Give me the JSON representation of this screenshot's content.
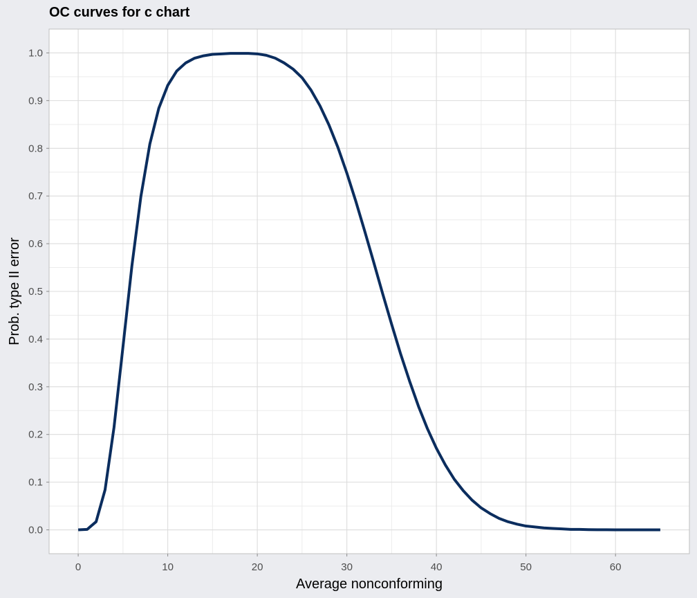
{
  "chart_data": {
    "type": "line",
    "title": "OC curves for c chart",
    "xlabel": "Average nonconforming",
    "ylabel": "Prob. type II error",
    "xlim": [
      -3.25,
      68.25
    ],
    "ylim": [
      -0.05,
      1.05
    ],
    "xticks": [
      0,
      10,
      20,
      30,
      40,
      50,
      60
    ],
    "yticks": [
      0.0,
      0.1,
      0.2,
      0.3,
      0.4,
      0.5,
      0.6,
      0.7,
      0.8,
      0.9,
      1.0
    ],
    "ytick_labels": [
      "0.0",
      "0.1",
      "0.2",
      "0.3",
      "0.4",
      "0.5",
      "0.6",
      "0.7",
      "0.8",
      "0.9",
      "1.0"
    ],
    "xtick_labels": [
      "0",
      "10",
      "20",
      "30",
      "40",
      "50",
      "60"
    ],
    "grid": true,
    "line_color": "#0b2d5e",
    "series": [
      {
        "x": [
          0,
          1,
          2,
          3,
          4,
          5,
          6,
          7,
          8,
          9,
          10,
          11,
          12,
          13,
          14,
          15,
          16,
          17,
          18,
          19,
          20,
          21,
          22,
          23,
          24,
          25,
          26,
          27,
          28,
          29,
          30,
          31,
          32,
          33,
          34,
          35,
          36,
          37,
          38,
          39,
          40,
          41,
          42,
          43,
          44,
          45,
          46,
          47,
          48,
          49,
          50,
          51,
          52,
          53,
          54,
          55,
          56,
          57,
          58,
          59,
          60,
          61,
          62,
          63,
          64,
          65
        ],
        "y": [
          0.0,
          0.001,
          0.017,
          0.084,
          0.215,
          0.384,
          0.554,
          0.699,
          0.809,
          0.884,
          0.932,
          0.962,
          0.979,
          0.989,
          0.994,
          0.997,
          0.998,
          0.999,
          0.999,
          0.999,
          0.998,
          0.995,
          0.989,
          0.979,
          0.966,
          0.948,
          0.922,
          0.889,
          0.849,
          0.802,
          0.748,
          0.689,
          0.626,
          0.561,
          0.495,
          0.431,
          0.369,
          0.312,
          0.259,
          0.212,
          0.171,
          0.136,
          0.106,
          0.082,
          0.062,
          0.046,
          0.034,
          0.024,
          0.017,
          0.012,
          0.008,
          0.006,
          0.004,
          0.003,
          0.002,
          0.001,
          0.001,
          0.0005,
          0.0003,
          0.0002,
          0.0001,
          0.0,
          0.0,
          0.0,
          0.0,
          0.0
        ]
      }
    ]
  }
}
